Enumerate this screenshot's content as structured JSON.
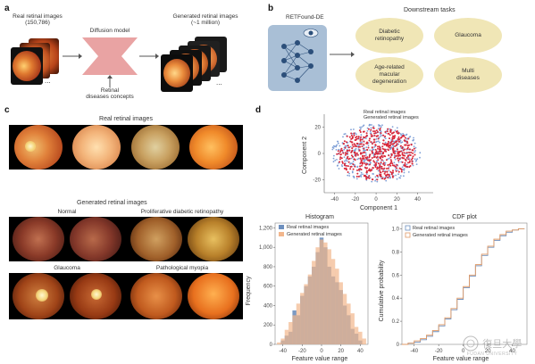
{
  "panels": {
    "a": "a",
    "b": "b",
    "c": "c",
    "d": "d"
  },
  "panel_a": {
    "real_label_line1": "Real retinal images",
    "real_label_line2": "(150,786)",
    "diffusion_label": "Diffusion model",
    "concepts_line1": "Retinal",
    "concepts_line2": "diseases concepts",
    "generated_label_line1": "Generated retinal images",
    "generated_label_line2": "(~1 million)",
    "ellipsis": "..."
  },
  "panel_b": {
    "model_name": "RETFound-DE",
    "downstream_title": "Downstream tasks",
    "tasks": [
      "Diabetic retinopathy",
      "Glaucoma",
      "Age-related macular degeneration",
      "Multi diseases"
    ],
    "colors": {
      "model_box": "#a9bfd6",
      "task_fill": "#f0e6b6"
    }
  },
  "panel_c": {
    "real_title": "Real retinal images",
    "generated_title": "Generated retinal images",
    "categories": [
      "Normal",
      "Proliferative diabetic retinopathy",
      "Glaucoma",
      "Pathological myopia"
    ]
  },
  "panel_d": {
    "scatter": {
      "xlabel": "Component 1",
      "ylabel": "Component 2",
      "xticks": [
        "-40",
        "-20",
        "0",
        "20",
        "40"
      ],
      "yticks": [
        "20",
        "0",
        "-20"
      ],
      "legend": [
        "Real retinal images",
        "Generated retinal images"
      ],
      "colors": {
        "real": "#7f9fd6",
        "generated": "#d8283a"
      }
    }
  },
  "watermark": {
    "chinese": "復旦大學",
    "english": "FUDAN UNIVERSITY"
  },
  "chart_data": [
    {
      "type": "bar",
      "title": "Histogram",
      "xlabel": "Feature value range",
      "ylabel": "Frequency",
      "categories": [
        "-44",
        "-40",
        "-36",
        "-32",
        "-28",
        "-24",
        "-20",
        "-16",
        "-12",
        "-8",
        "-4",
        "0",
        "4",
        "8",
        "12",
        "16",
        "20",
        "24",
        "28",
        "32",
        "36",
        "40",
        "44"
      ],
      "series": [
        {
          "name": "Real retinal images",
          "values": [
            0,
            40,
            90,
            130,
            350,
            300,
            500,
            600,
            700,
            800,
            950,
            1100,
            1000,
            800,
            700,
            640,
            560,
            400,
            300,
            160,
            110,
            40,
            0
          ]
        },
        {
          "name": "Generated retinal images",
          "values": [
            20,
            60,
            150,
            230,
            300,
            420,
            530,
            620,
            720,
            860,
            1000,
            1080,
            1050,
            980,
            880,
            780,
            640,
            520,
            420,
            320,
            180,
            130,
            60
          ]
        }
      ],
      "xticks": [
        "-40",
        "-20",
        "0",
        "20",
        "40"
      ],
      "yticks": [
        "0",
        "200",
        "400",
        "600",
        "800",
        "1,000",
        "1,200"
      ],
      "ylim": [
        0,
        1250
      ],
      "legend_position": "top-left",
      "colors": {
        "real": "#6d8fbe",
        "generated": "#f2b68c"
      }
    },
    {
      "type": "line",
      "title": "CDF plot",
      "xlabel": "Feature value range",
      "ylabel": "Cumulative probability",
      "x": [
        -50,
        -45,
        -40,
        -35,
        -30,
        -25,
        -20,
        -15,
        -10,
        -5,
        0,
        5,
        10,
        15,
        20,
        25,
        30,
        35,
        40,
        45,
        50
      ],
      "series": [
        {
          "name": "Real retinal images",
          "values": [
            0,
            0.01,
            0.02,
            0.04,
            0.07,
            0.11,
            0.16,
            0.22,
            0.3,
            0.39,
            0.49,
            0.59,
            0.68,
            0.77,
            0.84,
            0.9,
            0.94,
            0.97,
            0.99,
            1.0,
            1.0
          ]
        },
        {
          "name": "Generated retinal images",
          "values": [
            0,
            0.01,
            0.03,
            0.05,
            0.08,
            0.12,
            0.17,
            0.23,
            0.31,
            0.4,
            0.5,
            0.6,
            0.69,
            0.78,
            0.85,
            0.91,
            0.95,
            0.98,
            0.99,
            1.0,
            1.0
          ]
        }
      ],
      "xticks": [
        "-40",
        "-20",
        "0",
        "20",
        "40"
      ],
      "yticks": [
        "0",
        "0.2",
        "0.4",
        "0.6",
        "0.8",
        "1.0"
      ],
      "xlim": [
        -50,
        52
      ],
      "ylim": [
        0,
        1.05
      ],
      "legend_position": "top-left",
      "colors": {
        "real": "#6d8fbe",
        "generated": "#e09a66"
      }
    }
  ]
}
